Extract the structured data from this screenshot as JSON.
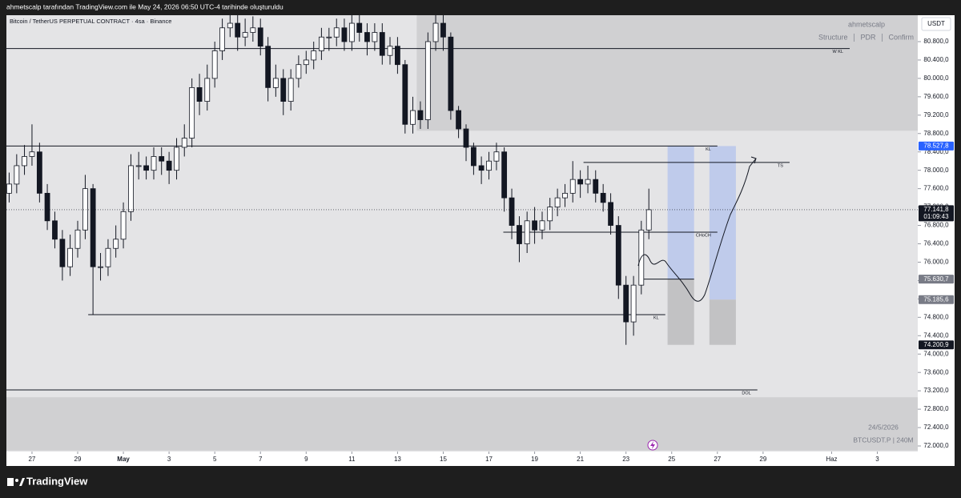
{
  "header": {
    "caption": "ahmetscalp tarafından TradingView.com ile May 24, 2026 06:50 UTC-4 tarihinde oluşturuldu",
    "brand": "TradingView"
  },
  "chart_data": {
    "type": "candlestick",
    "title": "Bitcoin / TetherUS PERPETUAL CONTRACT · 4sa · Binance",
    "author": "ahmetscalp",
    "menu": [
      "Structure",
      "PDR",
      "Confirm"
    ],
    "currency": "USDT",
    "date_label": "24/5/2026",
    "symbol_label": "BTCUSDT.P | 240M",
    "x": [
      -4,
      -3.67,
      -3.33,
      -3,
      -2.67,
      -2.33,
      -2,
      -1.67,
      -1.33,
      -1,
      -0.67,
      -0.33,
      0,
      0.33,
      0.67,
      1,
      1.33,
      1.67,
      2,
      2.33,
      2.67,
      3,
      3.33,
      3.67,
      4,
      4.33,
      4.67,
      5,
      5.33,
      5.67,
      6,
      6.33,
      6.67,
      7,
      7.33,
      7.67,
      8,
      8.33,
      8.67,
      9,
      9.33,
      9.67,
      10,
      10.33,
      10.67,
      11,
      11.33,
      11.67,
      12,
      12.33,
      12.67,
      13,
      13.33,
      13.67,
      14,
      14.33,
      14.67,
      15,
      15.33,
      15.67,
      16,
      16.33,
      16.67,
      17,
      17.33,
      17.67,
      18,
      18.33,
      18.67,
      19,
      19.33,
      19.67,
      20,
      20.33,
      20.67,
      21,
      21.33,
      21.67,
      22,
      22.33,
      22.67,
      23,
      23.33,
      23.67,
      24
    ],
    "open": [
      77500,
      77700,
      78100,
      78300,
      78400,
      77500,
      76900,
      76500,
      75900,
      76300,
      76700,
      77600,
      75900,
      75900,
      76300,
      76500,
      77100,
      78100,
      78100,
      78000,
      78300,
      78200,
      78000,
      78500,
      78700,
      79800,
      79500,
      80000,
      80600,
      81100,
      81200,
      80900,
      81000,
      81100,
      80700,
      79800,
      80000,
      79500,
      80000,
      80300,
      80400,
      80600,
      80900,
      80900,
      81100,
      80800,
      81200,
      81000,
      80800,
      81000,
      80500,
      80700,
      80300,
      79000,
      79300,
      79100,
      80800,
      81200,
      80900,
      79300,
      78900,
      78500,
      78100,
      78000,
      78200,
      78400,
      77400,
      76800,
      76400,
      76900,
      76700,
      76900,
      77200,
      77400,
      77500,
      77800,
      77700,
      77800,
      77500,
      77300,
      76800,
      75500,
      74700,
      75500,
      76700
    ],
    "high": [
      77950,
      78350,
      78550,
      79000,
      78600,
      77700,
      77100,
      76700,
      76600,
      76900,
      77900,
      77700,
      76200,
      76500,
      76800,
      77300,
      78350,
      78400,
      78300,
      78500,
      78500,
      78400,
      78700,
      79000,
      80000,
      80100,
      80300,
      80800,
      81300,
      81400,
      81400,
      81300,
      81350,
      81300,
      80900,
      80300,
      80200,
      80200,
      80500,
      80600,
      80800,
      81100,
      81100,
      81300,
      81300,
      81400,
      81400,
      81200,
      81200,
      81200,
      80900,
      80900,
      80400,
      79600,
      79500,
      81000,
      81400,
      81400,
      81000,
      79400,
      79000,
      78600,
      78300,
      78400,
      78600,
      78500,
      77600,
      77000,
      77100,
      77200,
      77100,
      77400,
      77600,
      77700,
      78200,
      78000,
      78100,
      78000,
      77700,
      77500,
      77000,
      75700,
      75700,
      76900,
      77600
    ],
    "low": [
      77300,
      77500,
      77900,
      78100,
      77300,
      76700,
      76300,
      75600,
      75700,
      76100,
      76500,
      74850,
      75600,
      75700,
      76100,
      76300,
      76900,
      77800,
      77800,
      77800,
      77900,
      77700,
      77800,
      78300,
      78500,
      79200,
      79300,
      79800,
      80400,
      80900,
      80600,
      80700,
      80800,
      80500,
      79500,
      79600,
      79200,
      79300,
      79800,
      80100,
      80200,
      80400,
      80600,
      80700,
      80600,
      80600,
      80800,
      80500,
      80600,
      80300,
      80300,
      80100,
      78800,
      78800,
      78900,
      78900,
      80600,
      80600,
      79100,
      78700,
      78200,
      77900,
      77700,
      77800,
      78000,
      77100,
      76500,
      76000,
      76200,
      76400,
      76500,
      76700,
      77000,
      77200,
      77300,
      77400,
      77500,
      77300,
      77100,
      76600,
      75200,
      74200.9,
      74400,
      75300,
      76500
    ],
    "close": [
      77700,
      78100,
      78300,
      78400,
      77500,
      76900,
      76500,
      75900,
      76300,
      76700,
      77600,
      75900,
      75900,
      76300,
      76500,
      77100,
      78100,
      78100,
      78000,
      78300,
      78200,
      78000,
      78500,
      78700,
      79800,
      79500,
      80000,
      80600,
      81100,
      81200,
      80900,
      81000,
      81100,
      80700,
      79800,
      80000,
      79500,
      80000,
      80300,
      80400,
      80600,
      80900,
      80900,
      81100,
      80800,
      81200,
      81000,
      80800,
      81000,
      80500,
      80700,
      80300,
      79000,
      79300,
      79100,
      80800,
      81200,
      80900,
      79300,
      78900,
      78500,
      78100,
      78000,
      78200,
      78400,
      77400,
      76800,
      76400,
      76900,
      76700,
      76900,
      77200,
      77400,
      77500,
      77800,
      77700,
      77800,
      77500,
      77300,
      76800,
      75500,
      74700,
      75500,
      76700,
      77141.8
    ],
    "up_color": "#ffffff",
    "down_color": "#131722",
    "xlim": [
      -4.12,
      35.77
    ],
    "xticks": [
      {
        "value": -3,
        "label": "27"
      },
      {
        "value": -1,
        "label": "29"
      },
      {
        "value": 1,
        "label": "May"
      },
      3,
      5,
      7,
      9,
      11,
      13,
      15,
      17,
      19,
      21,
      23,
      25,
      27,
      29,
      {
        "value": 32,
        "label": "Haz"
      },
      {
        "value": 34,
        "label": "3"
      }
    ],
    "ylim": [
      71878,
      81375
    ],
    "yticks": [
      {
        "value": 72000,
        "label": "72.000,0"
      },
      {
        "value": 72400,
        "label": "72.400,0"
      },
      {
        "value": 72800,
        "label": "72.800,0"
      },
      {
        "value": 73200,
        "label": "73.200,0"
      },
      {
        "value": 73600,
        "label": "73.600,0"
      },
      {
        "value": 74000,
        "label": "74.000,0"
      },
      {
        "value": 74400,
        "label": "74.400,0"
      },
      {
        "value": 74800,
        "label": "74.800,0"
      },
      {
        "value": 75200,
        "label": "75.200,0"
      },
      {
        "value": 75600,
        "label": "75.600,0"
      },
      {
        "value": 76000,
        "label": "76.000,0"
      },
      {
        "value": 76400,
        "label": "76.400,0"
      },
      {
        "value": 76800,
        "label": "76.800,0"
      },
      {
        "value": 77200,
        "label": "77.200,0"
      },
      {
        "value": 77600,
        "label": "77.600,0"
      },
      {
        "value": 78000,
        "label": "78.000,0"
      },
      {
        "value": 78400,
        "label": "78.400,0"
      },
      {
        "value": 78800,
        "label": "78.800,0"
      },
      {
        "value": 79200,
        "label": "79.200,0"
      },
      {
        "value": 79600,
        "label": "79.600,0"
      },
      {
        "value": 80000,
        "label": "80.000,0"
      },
      {
        "value": 80400,
        "label": "80.400,0"
      },
      {
        "value": 80800,
        "label": "80.800,0"
      }
    ],
    "zones": [
      {
        "x": [
          13.84,
          35.77
        ],
        "y": [
          78860,
          81375
        ],
        "color": "#d0d0d2"
      },
      {
        "x": [
          -4.12,
          35.77
        ],
        "y": [
          71900,
          73060
        ],
        "color": "#d0d0d2"
      }
    ],
    "positions": [
      {
        "x": [
          24.82,
          25.98
        ],
        "target": 78527.8,
        "entry": 75630.7,
        "stop": 74200.9
      },
      {
        "x": [
          26.65,
          27.81
        ],
        "target": 78527.8,
        "entry": 75185.6,
        "stop": 74200.9
      }
    ],
    "target_color": "#bfcbeb",
    "stop_color": "#c2c2c4",
    "levels": [
      {
        "label": "W KL",
        "value": 80650,
        "x": [
          -4.12,
          32.79
        ]
      },
      {
        "label": "KL",
        "value": 78527.8,
        "x": [
          -4.12,
          27
        ]
      },
      {
        "label": "TS",
        "value": 78170,
        "x": [
          21.14,
          30.16
        ]
      },
      {
        "label": "CHoCH",
        "value": 76652,
        "x": [
          17.63,
          27
        ]
      },
      {
        "label": "KL",
        "value": 74858,
        "x": [
          -0.54,
          24.72
        ]
      },
      {
        "label": "DOL",
        "value": 73220,
        "x": [
          -4.12,
          28.75
        ]
      },
      {
        "value": 75630.7,
        "x": [
          23.6,
          25.98
        ]
      }
    ],
    "price_markers": [
      {
        "value": 78527.8,
        "label": "78.527,8",
        "color": "#2962ff"
      },
      {
        "value": 77141.8,
        "label": "77.141,8",
        "timer": "01:09:43",
        "color": "#131722",
        "line": "dotted"
      },
      {
        "value": 75630.7,
        "label": "75.630,7",
        "color": "#787b86"
      },
      {
        "value": 75185.6,
        "label": "75.185,6",
        "color": "#787b86"
      },
      {
        "value": 74200.9,
        "label": "74.200,9",
        "color": "#131722"
      }
    ]
  }
}
